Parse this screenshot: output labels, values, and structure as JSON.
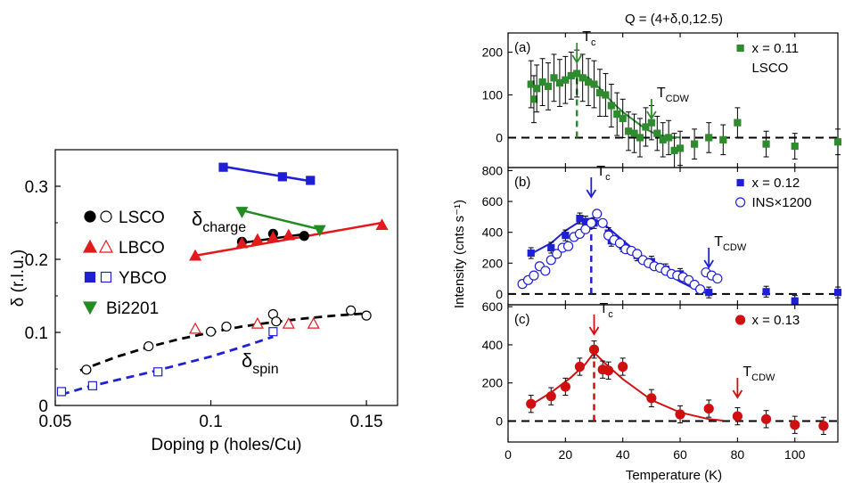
{
  "colors": {
    "LSCO": "#000000",
    "LBCO": "#e31a1c",
    "YBCO": "#1f1fd6",
    "Bi2201": "#228b22",
    "green": "#2e8b2e",
    "blue": "#1f1fd6",
    "red": "#d01010"
  },
  "chart_data": [
    {
      "type": "scatter",
      "xlabel": "Doping p (holes/Cu)",
      "ylabel": "δ (r.l.u.)",
      "xlim": [
        0.05,
        0.16
      ],
      "ylim": [
        0,
        0.35
      ],
      "xticks": [
        "0.05",
        "0.1",
        "0.15"
      ],
      "yticks": [
        "0",
        "0.1",
        "0.2",
        "0.3"
      ],
      "grid": false,
      "legend_position": "left",
      "legend": [
        {
          "name": "LSCO",
          "marker": "circle"
        },
        {
          "name": "LBCO",
          "marker": "triangle-up"
        },
        {
          "name": "YBCO",
          "marker": "square"
        },
        {
          "name": "Bi2201",
          "marker": "triangle-down"
        }
      ],
      "annotations": [
        {
          "text": "δ",
          "sub": "charge"
        },
        {
          "text": "δ",
          "sub": "spin"
        }
      ],
      "charge": {
        "YBCO": {
          "x": [
            0.104,
            0.123,
            0.132
          ],
          "y": [
            0.326,
            0.313,
            0.308
          ]
        },
        "Bi2201": {
          "x": [
            0.11,
            0.135
          ],
          "y": [
            0.265,
            0.24
          ]
        },
        "LSCO": {
          "x": [
            0.11,
            0.12,
            0.13
          ],
          "y": [
            0.224,
            0.235,
            0.232
          ]
        },
        "LBCO": {
          "x": [
            0.095,
            0.11,
            0.115,
            0.12,
            0.125,
            0.155
          ],
          "y": [
            0.205,
            0.222,
            0.227,
            0.23,
            0.233,
            0.247
          ]
        }
      },
      "charge_fits": {
        "YBCO": [
          [
            0.104,
            0.327
          ],
          [
            0.132,
            0.307
          ]
        ],
        "Bi2201": [
          [
            0.11,
            0.267
          ],
          [
            0.136,
            0.24
          ]
        ],
        "LSCO": [
          [
            0.109,
            0.222
          ],
          [
            0.131,
            0.235
          ]
        ],
        "LBCO": [
          [
            0.095,
            0.205
          ],
          [
            0.155,
            0.25
          ]
        ]
      },
      "spin": {
        "LSCO": {
          "x": [
            0.06,
            0.08,
            0.1,
            0.105,
            0.12,
            0.121,
            0.145,
            0.15
          ],
          "y": [
            0.049,
            0.081,
            0.101,
            0.108,
            0.125,
            0.115,
            0.13,
            0.123
          ]
        },
        "LBCO": {
          "x": [
            0.095,
            0.115,
            0.125,
            0.133
          ],
          "y": [
            0.105,
            0.112,
            0.112,
            0.112
          ]
        },
        "YBCO": {
          "x": [
            0.052,
            0.062,
            0.083,
            0.12
          ],
          "y": [
            0.019,
            0.027,
            0.046,
            0.101
          ]
        }
      },
      "spin_fits": {
        "LSCO": {
          "x": [
            0.058,
            0.07,
            0.08,
            0.09,
            0.1,
            0.11,
            0.12,
            0.13,
            0.14,
            0.15
          ],
          "y": [
            0.048,
            0.067,
            0.08,
            0.091,
            0.1,
            0.108,
            0.114,
            0.119,
            0.123,
            0.126
          ]
        },
        "YBCO": {
          "x": [
            0.052,
            0.06,
            0.07,
            0.08,
            0.09,
            0.1,
            0.11,
            0.12
          ],
          "y": [
            0.015,
            0.025,
            0.035,
            0.045,
            0.056,
            0.067,
            0.08,
            0.094
          ]
        }
      }
    },
    {
      "type": "line",
      "title": "Q = (4+δ,0,12.5)",
      "xlabel": "Temperature (K)",
      "ylabel": "Intensity (cnts s⁻¹)",
      "xlim": [
        0,
        115
      ],
      "xticks": [
        "0",
        "20",
        "40",
        "60",
        "80",
        "100"
      ],
      "panels": [
        {
          "label": "(a)",
          "ylim": [
            -70,
            245
          ],
          "yticks": [
            "0",
            "100",
            "200"
          ],
          "legend": [
            "x = 0.11",
            "LSCO"
          ],
          "tc_label": "T",
          "tc_sub": "c",
          "tc": 24,
          "tcdw_label": "T",
          "tcdw_sub": "CDW",
          "tcdw": 50,
          "series": [
            {
              "name": "x = 0.11",
              "marker": "square",
              "x": [
                8,
                9,
                10,
                12,
                14,
                16,
                18,
                20,
                22,
                24,
                26,
                28,
                30,
                32,
                34,
                36,
                38,
                40,
                42,
                44,
                46,
                48,
                50,
                52,
                54,
                56,
                58,
                60,
                65,
                70,
                75,
                80,
                90,
                100,
                115
              ],
              "y": [
                125,
                90,
                115,
                130,
                120,
                140,
                128,
                135,
                145,
                150,
                140,
                130,
                125,
                105,
                100,
                75,
                55,
                45,
                15,
                10,
                0,
                25,
                35,
                10,
                -5,
                0,
                -30,
                -25,
                -15,
                0,
                -5,
                35,
                -15,
                -20,
                -10
              ],
              "err": [
                55,
                55,
                55,
                55,
                55,
                55,
                55,
                55,
                55,
                55,
                55,
                55,
                55,
                55,
                50,
                50,
                50,
                45,
                45,
                45,
                45,
                45,
                40,
                40,
                40,
                40,
                40,
                40,
                35,
                35,
                35,
                35,
                30,
                30,
                30
              ]
            }
          ],
          "fit": {
            "x": [
              24,
              28,
              32,
              36,
              40,
              44,
              48,
              52,
              56,
              60
            ],
            "y": [
              150,
              140,
              115,
              85,
              60,
              40,
              20,
              7,
              2,
              0
            ]
          }
        },
        {
          "label": "(b)",
          "ylim": [
            -70,
            820
          ],
          "yticks": [
            "0",
            "200",
            "400",
            "600",
            "800"
          ],
          "legend": [
            "x = 0.12",
            "INS×1200"
          ],
          "tc_label": "T",
          "tc_sub": "c",
          "tc": 29,
          "tcdw_label": "T",
          "tcdw_sub": "CDW",
          "tcdw": 70,
          "series": [
            {
              "name": "x = 0.12",
              "marker": "square",
              "x": [
                8,
                15,
                20,
                25,
                27,
                30,
                35,
                36,
                40,
                45,
                50,
                55,
                60,
                70,
                90,
                100,
                115
              ],
              "y": [
                265,
                300,
                380,
                490,
                470,
                460,
                395,
                345,
                310,
                250,
                210,
                160,
                130,
                10,
                15,
                -45,
                10
              ],
              "err": [
                35,
                35,
                35,
                35,
                35,
                35,
                35,
                35,
                35,
                35,
                35,
                35,
                35,
                35,
                35,
                35,
                35
              ]
            },
            {
              "name": "INS×1200",
              "marker": "circle-open",
              "x": [
                5,
                7,
                9,
                11,
                13,
                15,
                17,
                19,
                21,
                23,
                25,
                27,
                29,
                31,
                33,
                35,
                37,
                39,
                41,
                43,
                45,
                47,
                49,
                51,
                53,
                55,
                57,
                59,
                61,
                63,
                65,
                67,
                69,
                71,
                73
              ],
              "y": [
                65,
                90,
                120,
                180,
                150,
                220,
                260,
                300,
                310,
                370,
                390,
                420,
                460,
                520,
                460,
                380,
                350,
                330,
                290,
                280,
                260,
                220,
                200,
                180,
                170,
                150,
                130,
                120,
                110,
                90,
                60,
                30,
                140,
                120,
                100
              ],
              "err": []
            }
          ],
          "fit": {
            "x": [
              8,
              15,
              20,
              25,
              29,
              33,
              38,
              45,
              52,
              60,
              66,
              70
            ],
            "y": [
              260,
              330,
              410,
              470,
              490,
              460,
              380,
              270,
              170,
              80,
              25,
              0
            ]
          }
        },
        {
          "label": "(c)",
          "ylim": [
            -110,
            610
          ],
          "yticks": [
            "0",
            "200",
            "400",
            "600"
          ],
          "legend": [
            "x = 0.13"
          ],
          "tc_label": "T",
          "tc_sub": "c",
          "tc": 30,
          "tcdw_label": "T",
          "tcdw_sub": "CDW",
          "tcdw": 80,
          "series": [
            {
              "name": "x = 0.13",
              "marker": "circle",
              "x": [
                8,
                15,
                20,
                25,
                30,
                33,
                35,
                40,
                50,
                60,
                70,
                80,
                90,
                100,
                110
              ],
              "y": [
                90,
                130,
                180,
                285,
                375,
                270,
                265,
                285,
                120,
                35,
                65,
                25,
                10,
                -20,
                -25
              ],
              "err": [
                45,
                45,
                45,
                45,
                45,
                45,
                45,
                45,
                45,
                45,
                45,
                45,
                45,
                45,
                45
              ]
            }
          ],
          "fit": {
            "x": [
              8,
              15,
              22,
              27,
              30,
              34,
              40,
              50,
              60,
              70,
              75
            ],
            "y": [
              85,
              150,
              230,
              300,
              360,
              300,
              220,
              110,
              45,
              10,
              2
            ]
          }
        }
      ]
    }
  ]
}
